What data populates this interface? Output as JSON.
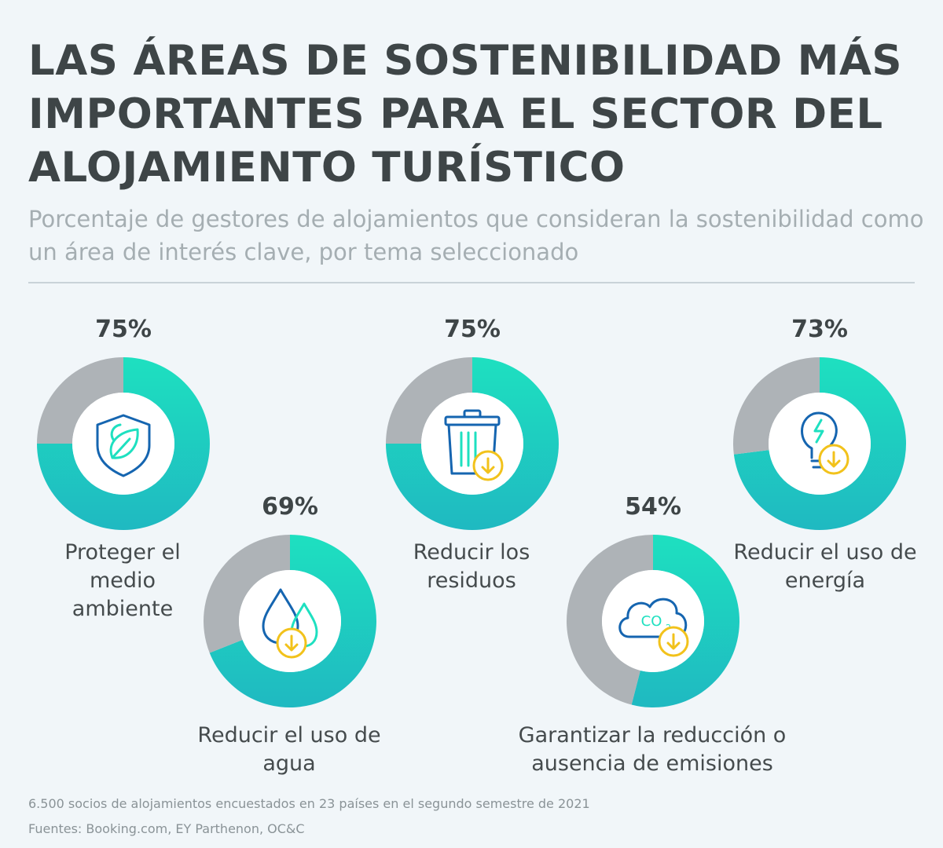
{
  "title": "LAS ÁREAS DE SOSTENIBILIDAD MÁS IMPORTANTES PARA EL SECTOR DEL ALOJAMIENTO TURÍSTICO",
  "subtitle": "Porcentaje de gestores de alojamientos que consideran la sostenibilidad como un área de interés clave, por tema seleccionado",
  "colors": {
    "accent_light": "#1ee0c0",
    "accent_dark": "#1fb9c1",
    "remainder": "#aeb3b7",
    "icon_blue": "#1565b0",
    "icon_yellow": "#f2c21b"
  },
  "chart_data": {
    "type": "pie",
    "variant": "donut",
    "title": "LAS ÁREAS DE SOSTENIBILIDAD MÁS IMPORTANTES PARA EL SECTOR DEL ALOJAMIENTO TURÍSTICO",
    "unit": "%",
    "categories": [
      "Proteger el medio ambiente",
      "Reducir el uso de agua",
      "Reducir los residuos",
      "Garantizar la reducción o ausencia de emisiones",
      "Reducir el uso de energía"
    ],
    "values": [
      75,
      69,
      75,
      54,
      73
    ],
    "items": [
      {
        "label": "Proteger el medio ambiente",
        "value": 75,
        "display": "75%",
        "icon": "leaf-shield-icon"
      },
      {
        "label": "Reducir el uso de agua",
        "value": 69,
        "display": "69%",
        "icon": "water-drops-icon"
      },
      {
        "label": "Reducir los residuos",
        "value": 75,
        "display": "75%",
        "icon": "trash-bin-icon"
      },
      {
        "label": "Garantizar la reducción o ausencia de emisiones",
        "value": 54,
        "display": "54%",
        "icon": "co2-cloud-icon"
      },
      {
        "label": "Reducir el uso de energía",
        "value": 73,
        "display": "73%",
        "icon": "light-bulb-icon"
      }
    ]
  },
  "footer": {
    "note": "6.500 socios de alojamientos encuestados en 23 países en el segundo semestre de 2021",
    "sources": "Fuentes: Booking.com, EY Parthenon, OC&C"
  }
}
